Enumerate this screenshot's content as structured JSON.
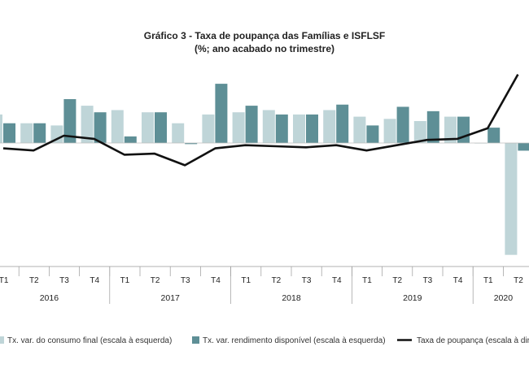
{
  "chart_data": {
    "type": "bar",
    "title": "Gráfico  3 - Taxa de poupança das Famílias e ISFLSF",
    "subtitle": "(%; ano acabado no trimestre)",
    "categories": [
      "T1",
      "T2",
      "T3",
      "T4",
      "T1",
      "T2",
      "T3",
      "T4",
      "T1",
      "T2",
      "T3",
      "T4",
      "T1",
      "T2",
      "T3",
      "T4",
      "T1",
      "T2"
    ],
    "years": [
      {
        "label": "2016",
        "quarters": 4
      },
      {
        "label": "2017",
        "quarters": 4
      },
      {
        "label": "2018",
        "quarters": 4
      },
      {
        "label": "2019",
        "quarters": 4
      },
      {
        "label": "2020",
        "quarters": 2
      }
    ],
    "series": [
      {
        "name": "Tx. var. do consumo final (escala à esquerda)",
        "kind": "bar",
        "color": "#bfd5d8",
        "values": [
          1.3,
          0.9,
          0.8,
          1.7,
          1.5,
          1.4,
          0.9,
          1.3,
          1.4,
          1.5,
          1.3,
          1.5,
          1.2,
          1.1,
          1.0,
          1.2,
          0.0,
          -5.1
        ]
      },
      {
        "name": "Tx. var. rendimento disponível (escala à esquerda)",
        "kind": "bar",
        "color": "#5e8f96",
        "values": [
          0.9,
          0.9,
          2.0,
          1.4,
          0.3,
          1.4,
          -0.05,
          2.7,
          1.7,
          1.3,
          1.3,
          1.75,
          0.8,
          1.65,
          1.45,
          1.2,
          0.7,
          -0.35
        ]
      },
      {
        "name": "Taxa de poupança (escala à direita)",
        "kind": "line",
        "color": "#111111",
        "values": [
          -0.1,
          -0.2,
          0.5,
          0.35,
          -0.4,
          -0.35,
          -0.9,
          -0.1,
          0.05,
          0.0,
          -0.05,
          0.05,
          -0.2,
          0.05,
          0.3,
          0.35,
          0.85,
          3.4
        ]
      }
    ],
    "legend": [
      "Tx. var. do consumo final (escala à esquerda)",
      "Tx. var. rendimento disponível (escala à esquerda)",
      "Taxa de poupança (escala à direita)"
    ],
    "legend_position": "bottom",
    "grid": false
  }
}
